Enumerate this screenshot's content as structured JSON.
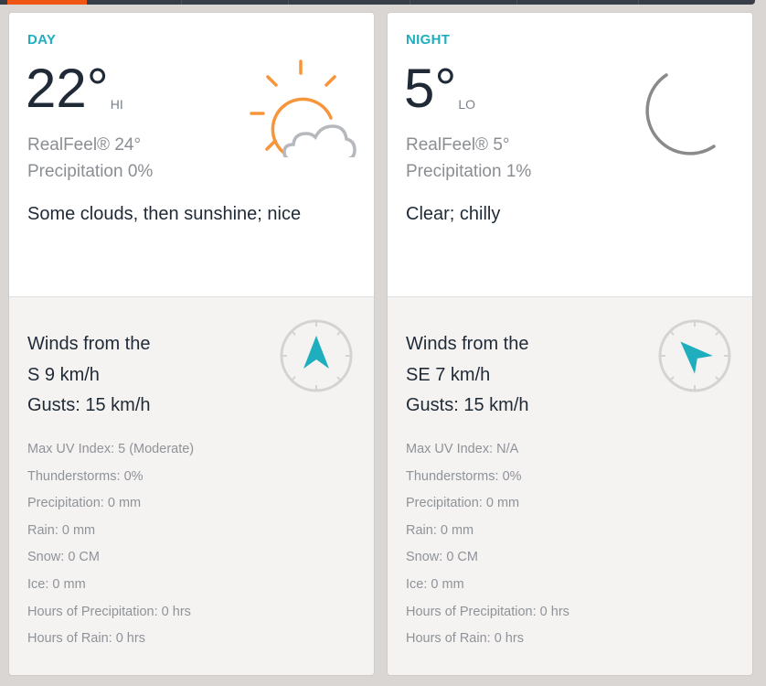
{
  "colors": {
    "accent": "#1faebe",
    "nav_active": "#f05514",
    "sun": "#f7953a",
    "cloud": "#b5b9bd"
  },
  "day": {
    "label": "DAY",
    "temp": "22°",
    "hilo": "HI",
    "realfeel": "RealFeel® 24°",
    "precip": "Precipitation 0%",
    "phrase": "Some clouds, then sunshine; nice",
    "icon": "sun-cloud-icon",
    "wind_line1": "Winds from the",
    "wind_line2": "S 9 km/h",
    "gusts": "Gusts: 15 km/h",
    "wind_direction_deg": 0,
    "details": [
      "Max UV Index: 5 (Moderate)",
      "Thunderstorms: 0%",
      "Precipitation: 0 mm",
      "Rain: 0 mm",
      "Snow: 0 CM",
      "Ice: 0 mm",
      "Hours of Precipitation: 0 hrs",
      "Hours of Rain: 0 hrs"
    ]
  },
  "night": {
    "label": "NIGHT",
    "temp": "5°",
    "hilo": "LO",
    "realfeel": "RealFeel® 5°",
    "precip": "Precipitation 1%",
    "phrase": "Clear; chilly",
    "icon": "moon-icon",
    "wind_line1": "Winds from the",
    "wind_line2": "SE 7 km/h",
    "gusts": "Gusts: 15 km/h",
    "wind_direction_deg": -45,
    "details": [
      "Max UV Index: N/A",
      "Thunderstorms: 0%",
      "Precipitation: 0 mm",
      "Rain: 0 mm",
      "Snow: 0 CM",
      "Ice: 0 mm",
      "Hours of Precipitation: 0 hrs",
      "Hours of Rain: 0 hrs"
    ]
  }
}
